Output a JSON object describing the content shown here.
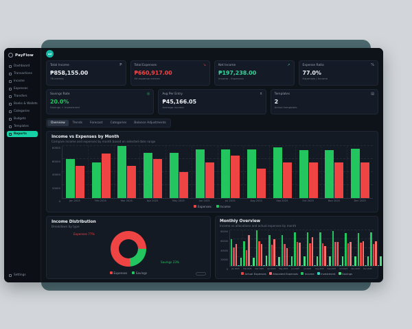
{
  "app": {
    "name": "PayFlow",
    "avatar": "ad"
  },
  "sidebar": {
    "items": [
      "Dashboard",
      "Transactions",
      "Income",
      "Expenses",
      "Transfers",
      "Banks & Wallets",
      "Categories",
      "Budgets",
      "Templates",
      "Reports"
    ],
    "active": "Reports",
    "settings": "Settings"
  },
  "cards_row1": [
    {
      "label": "Total Income",
      "value": "₱858,155.00",
      "sub": "76 entries",
      "color": "#e9ecf1",
      "icon": "peso-icon",
      "icon_glyph": "₱",
      "icon_color": "#8b94a5"
    },
    {
      "label": "Total Expenses",
      "value": "₱660,917.00",
      "sub": "94 expense entries",
      "color": "#ef4444",
      "icon": "trend-down-icon",
      "icon_glyph": "↘",
      "icon_color": "#ef4444"
    },
    {
      "label": "Net Income",
      "value": "₱197,238.00",
      "sub": "Income - Expenses",
      "color": "#34d399",
      "icon": "trend-up-icon",
      "icon_glyph": "↗",
      "icon_color": "#34d399"
    },
    {
      "label": "Expense Ratio",
      "value": "77.0%",
      "sub": "Expenses / Income",
      "color": "#e9ecf1",
      "icon": "percent-icon",
      "icon_glyph": "%",
      "icon_color": "#8b94a5"
    }
  ],
  "cards_row2": [
    {
      "label": "Savings Rate",
      "value": "20.0%",
      "sub": "Savings + Investment",
      "color": "#22c55e",
      "icon": "target-icon",
      "icon_glyph": "◎",
      "icon_color": "#22c55e"
    },
    {
      "label": "Avg Per Entry",
      "value": "₱45,166.05",
      "sub": "Average income",
      "color": "#e9ecf1",
      "icon": "coins-icon",
      "icon_glyph": "¤",
      "icon_color": "#8b94a5"
    },
    {
      "label": "Templates",
      "value": "2",
      "sub": "Active templates",
      "color": "#e9ecf1",
      "icon": "template-icon",
      "icon_glyph": "▤",
      "icon_color": "#8b94a5"
    }
  ],
  "tabs": {
    "items": [
      "Overview",
      "Trends",
      "Forecast",
      "Categories",
      "Balance Adjustments"
    ],
    "active": "Overview"
  },
  "chart_data": [
    {
      "id": "income-vs-expenses",
      "type": "bar",
      "title": "Income vs Expenses by Month",
      "subtitle": "Compare income and expenses by month based on selected date range",
      "categories": [
        "Jan 2025",
        "Feb 2025",
        "Mar 2025",
        "Apr 2025",
        "May 2025",
        "Jun 2025",
        "Jul 2025",
        "Aug 2025",
        "Sep 2025",
        "Oct 2025",
        "Nov 2025",
        "Dec 2025"
      ],
      "series": [
        {
          "name": "Income",
          "color": "#22c55e",
          "values": [
            60000,
            55000,
            80000,
            70000,
            70000,
            75000,
            75000,
            75000,
            78000,
            74000,
            74000,
            76000
          ]
        },
        {
          "name": "Expenses",
          "color": "#ef4444",
          "values": [
            50000,
            69000,
            50000,
            60000,
            40000,
            55000,
            65000,
            45000,
            55000,
            55000,
            55000,
            55000
          ]
        }
      ],
      "legend": [
        {
          "label": "Expenses",
          "color": "#ef4444"
        },
        {
          "label": "Income",
          "color": "#22c55e"
        }
      ],
      "ylim": [
        0,
        80000
      ],
      "yticks": [
        0,
        20000,
        40000,
        60000,
        80000
      ],
      "grid": true,
      "legend_position": "bottom"
    },
    {
      "id": "income-distribution",
      "type": "pie",
      "title": "Income Distribution",
      "subtitle": "Breakdown by type",
      "slices": [
        {
          "label": "Savings",
          "pct": 23,
          "color": "#22c55e"
        },
        {
          "label": "Expenses",
          "pct": 77,
          "color": "#ef4444"
        }
      ],
      "callouts": [
        {
          "text": "Expenses 77%",
          "color": "#ef4444",
          "pos": "top-left"
        },
        {
          "text": "Savings 23%",
          "color": "#22c55e",
          "pos": "bottom-right"
        }
      ],
      "legend": [
        {
          "label": "Expenses",
          "color": "#ef4444"
        },
        {
          "label": "Savings",
          "color": "#22c55e"
        }
      ],
      "legend_position": "bottom"
    },
    {
      "id": "monthly-overview",
      "type": "bar",
      "title": "Monthly Overview",
      "subtitle": "Income vs allocations and actual expenses by month",
      "categories": [
        "Jan 2025",
        "Feb 2025",
        "Mar 2025",
        "Apr 2025",
        "May 2025",
        "Jun 2025",
        "Jul 2025",
        "Aug 2025",
        "Sep 2025",
        "Oct 2025",
        "Nov 2025",
        "Dec 2025"
      ],
      "series": [
        {
          "name": "Income",
          "color": "#22c55e",
          "values": [
            60000,
            55000,
            80000,
            70000,
            70000,
            75000,
            75000,
            75000,
            78000,
            74000,
            74000,
            76000
          ]
        },
        {
          "name": "Actual Expenses",
          "color": "#ef4444",
          "values": [
            42000,
            35000,
            55000,
            48000,
            49000,
            54000,
            51000,
            51000,
            54000,
            51000,
            52000,
            50000
          ]
        },
        {
          "name": "Allocated Expenses",
          "color": "#f87171",
          "values": [
            50000,
            70000,
            50000,
            60000,
            40000,
            52000,
            65000,
            45000,
            54000,
            54000,
            55000,
            55000
          ]
        },
        {
          "name": "Investment",
          "color": "#2dd4bf",
          "values": [
            2000,
            2000,
            2000,
            2000,
            2000,
            2000,
            2000,
            2000,
            2000,
            2000,
            2000,
            2000
          ]
        },
        {
          "name": "Savings",
          "color": "#4ade80",
          "values": [
            18000,
            18000,
            23000,
            20000,
            21000,
            21000,
            21000,
            21000,
            22000,
            21000,
            21000,
            21000
          ]
        }
      ],
      "legend": [
        {
          "label": "Actual Expenses",
          "color": "#ef4444"
        },
        {
          "label": "Allocated Expenses",
          "color": "#f87171"
        },
        {
          "label": "Income",
          "color": "#22c55e"
        },
        {
          "label": "Investment",
          "color": "#2dd4bf"
        },
        {
          "label": "Savings",
          "color": "#4ade80"
        }
      ],
      "ylim": [
        0,
        80000
      ],
      "yticks": [
        0,
        20000,
        40000,
        60000,
        80000
      ],
      "grid": true,
      "legend_position": "bottom"
    }
  ]
}
